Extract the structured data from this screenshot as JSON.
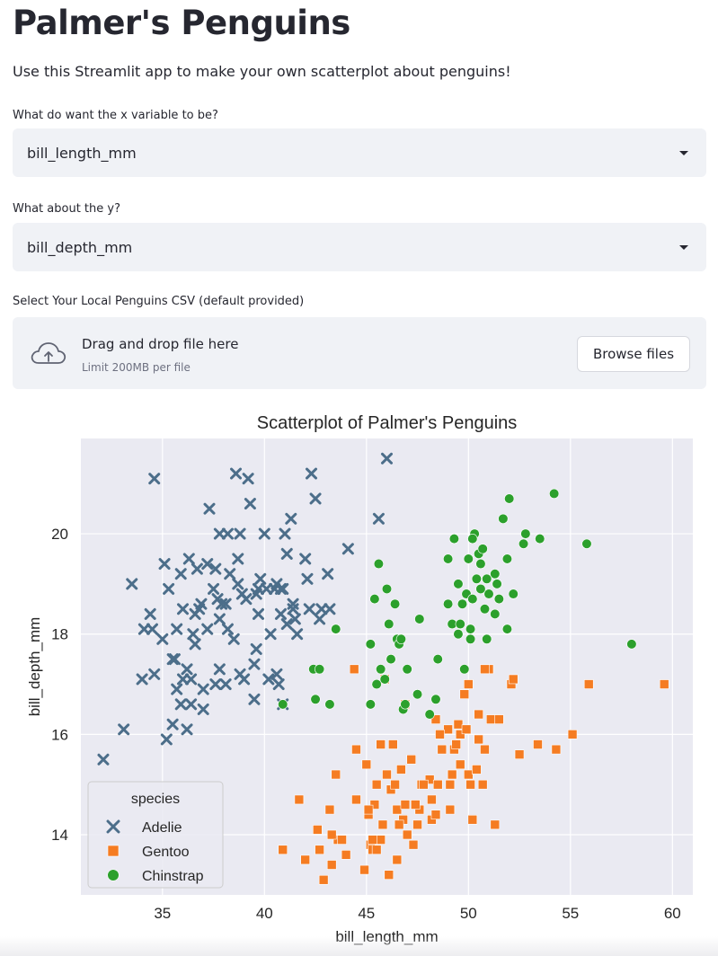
{
  "page": {
    "title": "Palmer's Penguins",
    "subtitle": "Use this Streamlit app to make your own scatterplot about penguins!"
  },
  "x_select": {
    "label": "What do want the x variable to be?",
    "value": "bill_length_mm"
  },
  "y_select": {
    "label": "What about the y?",
    "value": "bill_depth_mm"
  },
  "uploader": {
    "label": "Select Your Local Penguins CSV (default provided)",
    "drag_text": "Drag and drop file here",
    "limit_text": "Limit 200MB per file",
    "browse_label": "Browse files",
    "icon": "cloud-upload-icon"
  },
  "chart_data": {
    "type": "scatter",
    "title": "Scatterplot of Palmer's Penguins",
    "xlabel": "bill_length_mm",
    "ylabel": "bill_depth_mm",
    "xlim": [
      31,
      61
    ],
    "ylim": [
      12.8,
      21.9
    ],
    "xticks": [
      35,
      40,
      45,
      50,
      55,
      60
    ],
    "yticks": [
      14,
      16,
      18,
      20
    ],
    "grid": true,
    "legend": {
      "title": "species",
      "position": "lower-left"
    },
    "series": [
      {
        "name": "Adelie",
        "marker": "x",
        "color": "#4c6e8a",
        "points": [
          [
            32.1,
            15.5
          ],
          [
            33.1,
            16.1
          ],
          [
            33.5,
            19.0
          ],
          [
            34.0,
            17.1
          ],
          [
            34.4,
            18.4
          ],
          [
            34.5,
            18.1
          ],
          [
            34.6,
            21.1
          ],
          [
            34.6,
            17.2
          ],
          [
            35.0,
            17.9
          ],
          [
            35.1,
            19.4
          ],
          [
            35.2,
            15.9
          ],
          [
            35.3,
            18.9
          ],
          [
            35.5,
            16.2
          ],
          [
            35.5,
            17.5
          ],
          [
            35.6,
            17.5
          ],
          [
            35.7,
            16.9
          ],
          [
            35.9,
            19.2
          ],
          [
            36.0,
            18.5
          ],
          [
            36.0,
            17.1
          ],
          [
            36.2,
            16.1
          ],
          [
            36.2,
            17.3
          ],
          [
            36.3,
            19.5
          ],
          [
            36.4,
            17.1
          ],
          [
            36.5,
            18.0
          ],
          [
            36.6,
            18.4
          ],
          [
            36.7,
            19.3
          ],
          [
            36.8,
            18.5
          ],
          [
            36.9,
            18.6
          ],
          [
            37.0,
            16.9
          ],
          [
            37.2,
            19.4
          ],
          [
            37.3,
            20.5
          ],
          [
            37.5,
            18.9
          ],
          [
            37.6,
            17.0
          ],
          [
            37.7,
            18.7
          ],
          [
            37.8,
            20.0
          ],
          [
            37.8,
            18.3
          ],
          [
            37.9,
            18.6
          ],
          [
            38.1,
            17.0
          ],
          [
            38.2,
            20.0
          ],
          [
            38.3,
            19.2
          ],
          [
            38.5,
            17.9
          ],
          [
            38.6,
            21.2
          ],
          [
            38.7,
            19.0
          ],
          [
            38.8,
            17.2
          ],
          [
            38.9,
            18.8
          ],
          [
            39.0,
            17.1
          ],
          [
            39.1,
            18.7
          ],
          [
            39.2,
            21.1
          ],
          [
            39.3,
            20.6
          ],
          [
            39.5,
            17.4
          ],
          [
            39.6,
            18.8
          ],
          [
            39.7,
            18.9
          ],
          [
            39.8,
            19.1
          ],
          [
            40.0,
            20.0
          ],
          [
            40.1,
            18.9
          ],
          [
            40.2,
            17.1
          ],
          [
            40.3,
            18.0
          ],
          [
            40.5,
            18.9
          ],
          [
            40.6,
            19.0
          ],
          [
            40.7,
            17.0
          ],
          [
            40.8,
            18.4
          ],
          [
            40.9,
            16.6
          ],
          [
            41.0,
            20.0
          ],
          [
            41.1,
            19.6
          ],
          [
            41.3,
            20.3
          ],
          [
            41.4,
            18.6
          ],
          [
            41.5,
            18.3
          ],
          [
            41.6,
            18.0
          ],
          [
            42.0,
            19.5
          ],
          [
            42.1,
            19.1
          ],
          [
            42.2,
            18.5
          ],
          [
            42.3,
            21.2
          ],
          [
            42.5,
            20.7
          ],
          [
            42.7,
            18.3
          ],
          [
            43.1,
            19.2
          ],
          [
            43.2,
            18.5
          ],
          [
            44.1,
            19.7
          ],
          [
            45.6,
            20.3
          ],
          [
            46.0,
            21.5
          ],
          [
            38.1,
            18.6
          ],
          [
            37.0,
            16.5
          ],
          [
            36.6,
            17.8
          ],
          [
            39.5,
            16.7
          ],
          [
            40.8,
            18.9
          ],
          [
            41.1,
            18.2
          ],
          [
            38.7,
            19.5
          ],
          [
            37.2,
            18.1
          ],
          [
            35.9,
            16.6
          ],
          [
            38.2,
            18.1
          ],
          [
            39.6,
            17.7
          ],
          [
            40.6,
            17.2
          ],
          [
            41.4,
            18.5
          ],
          [
            36.4,
            16.6
          ],
          [
            37.8,
            17.3
          ],
          [
            39.7,
            18.4
          ],
          [
            38.8,
            20.0
          ],
          [
            35.7,
            18.1
          ],
          [
            40.9,
            18.9
          ],
          [
            37.6,
            19.3
          ],
          [
            42.8,
            18.5
          ],
          [
            34.1,
            18.1
          ]
        ]
      },
      {
        "name": "Gentoo",
        "marker": "s",
        "color": "#f57c22",
        "points": [
          [
            40.9,
            13.7
          ],
          [
            42.0,
            13.5
          ],
          [
            42.7,
            13.7
          ],
          [
            42.9,
            13.1
          ],
          [
            43.2,
            14.5
          ],
          [
            43.3,
            13.4
          ],
          [
            43.5,
            15.2
          ],
          [
            43.6,
            13.9
          ],
          [
            44.4,
            17.3
          ],
          [
            44.5,
            14.7
          ],
          [
            45.0,
            15.4
          ],
          [
            45.1,
            14.4
          ],
          [
            45.2,
            13.8
          ],
          [
            45.3,
            13.7
          ],
          [
            45.4,
            14.6
          ],
          [
            45.5,
            13.7
          ],
          [
            45.5,
            15.0
          ],
          [
            45.7,
            13.9
          ],
          [
            45.8,
            14.2
          ],
          [
            46.1,
            13.2
          ],
          [
            46.2,
            14.9
          ],
          [
            46.4,
            15.0
          ],
          [
            46.5,
            14.5
          ],
          [
            46.7,
            15.3
          ],
          [
            46.8,
            14.3
          ],
          [
            46.9,
            14.6
          ],
          [
            47.2,
            15.5
          ],
          [
            47.3,
            13.8
          ],
          [
            47.5,
            14.2
          ],
          [
            47.6,
            14.5
          ],
          [
            47.7,
            15.0
          ],
          [
            48.1,
            15.1
          ],
          [
            48.2,
            14.3
          ],
          [
            48.4,
            14.4
          ],
          [
            48.5,
            15.0
          ],
          [
            48.7,
            15.7
          ],
          [
            49.0,
            16.1
          ],
          [
            49.1,
            15.0
          ],
          [
            49.2,
            15.2
          ],
          [
            49.3,
            15.7
          ],
          [
            49.5,
            16.2
          ],
          [
            49.6,
            16.0
          ],
          [
            49.8,
            16.8
          ],
          [
            50.0,
            15.2
          ],
          [
            50.1,
            15.0
          ],
          [
            50.2,
            14.3
          ],
          [
            50.4,
            15.3
          ],
          [
            50.5,
            15.9
          ],
          [
            50.7,
            15.0
          ],
          [
            50.8,
            15.7
          ],
          [
            51.1,
            16.3
          ],
          [
            51.3,
            14.2
          ],
          [
            51.5,
            16.3
          ],
          [
            52.1,
            17.0
          ],
          [
            52.2,
            17.1
          ],
          [
            52.5,
            15.6
          ],
          [
            53.4,
            15.8
          ],
          [
            54.3,
            15.7
          ],
          [
            55.1,
            16.0
          ],
          [
            55.9,
            17.0
          ],
          [
            59.6,
            17.0
          ],
          [
            42.6,
            14.1
          ],
          [
            44.9,
            13.3
          ],
          [
            45.9,
            17.1
          ],
          [
            46.6,
            14.2
          ],
          [
            47.4,
            14.6
          ],
          [
            48.6,
            16.0
          ],
          [
            49.9,
            16.1
          ],
          [
            50.5,
            16.4
          ],
          [
            51.0,
            17.3
          ],
          [
            43.8,
            13.9
          ],
          [
            44.0,
            13.6
          ],
          [
            45.3,
            13.9
          ],
          [
            46.3,
            15.8
          ],
          [
            47.8,
            15.0
          ],
          [
            49.4,
            15.8
          ],
          [
            50.8,
            17.3
          ],
          [
            41.7,
            14.7
          ],
          [
            43.3,
            14.0
          ],
          [
            45.1,
            14.5
          ],
          [
            46.5,
            13.5
          ],
          [
            48.4,
            16.3
          ],
          [
            49.1,
            14.5
          ],
          [
            46.0,
            15.2
          ],
          [
            47.0,
            14.0
          ],
          [
            48.2,
            14.7
          ],
          [
            49.6,
            15.4
          ],
          [
            50.0,
            17.0
          ],
          [
            44.5,
            15.7
          ],
          [
            46.9,
            16.6
          ],
          [
            45.7,
            15.8
          ]
        ]
      },
      {
        "name": "Chinstrap",
        "marker": "o",
        "color": "#2ca02c",
        "points": [
          [
            40.9,
            16.6
          ],
          [
            42.4,
            17.3
          ],
          [
            42.5,
            16.7
          ],
          [
            42.7,
            17.3
          ],
          [
            43.2,
            16.6
          ],
          [
            43.5,
            18.1
          ],
          [
            45.2,
            17.8
          ],
          [
            45.2,
            16.6
          ],
          [
            45.4,
            18.7
          ],
          [
            45.5,
            17.0
          ],
          [
            45.6,
            19.4
          ],
          [
            45.7,
            17.3
          ],
          [
            45.9,
            17.1
          ],
          [
            46.0,
            18.9
          ],
          [
            46.1,
            18.2
          ],
          [
            46.2,
            17.5
          ],
          [
            46.4,
            18.6
          ],
          [
            46.5,
            17.9
          ],
          [
            46.6,
            17.8
          ],
          [
            46.7,
            17.9
          ],
          [
            46.8,
            16.5
          ],
          [
            46.9,
            16.6
          ],
          [
            47.0,
            17.3
          ],
          [
            47.5,
            16.8
          ],
          [
            47.6,
            18.3
          ],
          [
            48.1,
            16.4
          ],
          [
            48.5,
            17.5
          ],
          [
            49.0,
            19.5
          ],
          [
            49.2,
            18.2
          ],
          [
            49.3,
            19.9
          ],
          [
            49.5,
            19.0
          ],
          [
            49.6,
            18.2
          ],
          [
            49.7,
            18.6
          ],
          [
            49.8,
            17.3
          ],
          [
            49.9,
            18.8
          ],
          [
            50.0,
            19.5
          ],
          [
            50.1,
            17.9
          ],
          [
            50.2,
            18.7
          ],
          [
            50.3,
            20.0
          ],
          [
            50.5,
            19.6
          ],
          [
            50.6,
            19.4
          ],
          [
            50.7,
            19.7
          ],
          [
            50.8,
            18.5
          ],
          [
            50.9,
            19.1
          ],
          [
            51.0,
            18.8
          ],
          [
            51.3,
            19.2
          ],
          [
            51.4,
            19.0
          ],
          [
            51.5,
            18.7
          ],
          [
            51.7,
            20.3
          ],
          [
            51.9,
            19.5
          ],
          [
            52.0,
            20.7
          ],
          [
            52.7,
            19.8
          ],
          [
            52.8,
            20.0
          ],
          [
            53.5,
            19.9
          ],
          [
            54.2,
            20.8
          ],
          [
            55.8,
            19.8
          ],
          [
            58.0,
            17.8
          ],
          [
            50.2,
            19.9
          ],
          [
            51.9,
            18.1
          ],
          [
            50.1,
            18.1
          ],
          [
            49.0,
            18.6
          ],
          [
            48.4,
            16.7
          ],
          [
            50.4,
            19.1
          ],
          [
            51.3,
            18.4
          ],
          [
            50.6,
            18.9
          ],
          [
            50.9,
            17.9
          ],
          [
            52.2,
            18.8
          ],
          [
            49.5,
            18.0
          ]
        ]
      }
    ]
  }
}
